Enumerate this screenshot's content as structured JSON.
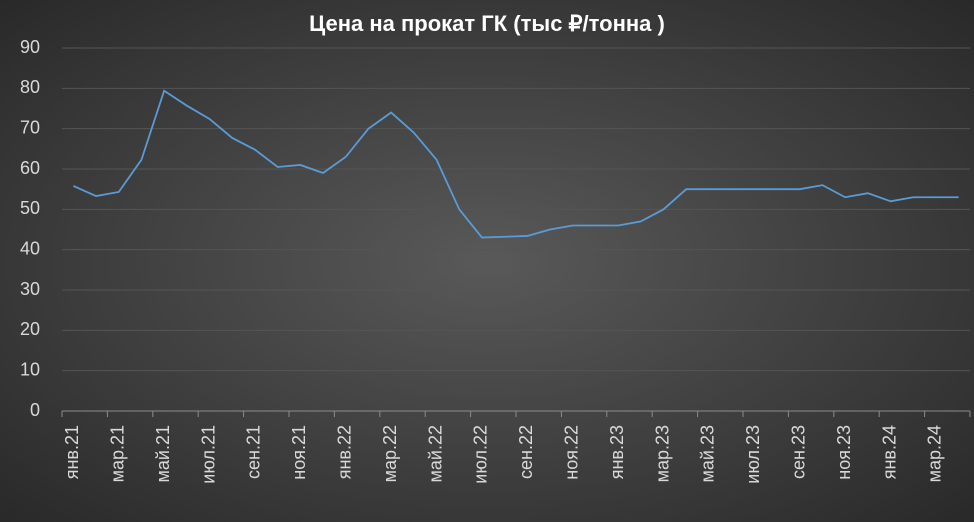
{
  "chart_data": {
    "type": "line",
    "title": "Цена на прокат ГК (тыс ₽/тонна )",
    "categories": [
      "янв.21",
      null,
      "мар.21",
      null,
      "май.21",
      null,
      "июл.21",
      null,
      "сен.21",
      null,
      "ноя.21",
      null,
      "янв.22",
      null,
      "мар.22",
      null,
      "май.22",
      null,
      "июл.22",
      null,
      "сен.22",
      null,
      "ноя.22",
      null,
      "янв.23",
      null,
      "мар.23",
      null,
      "май.23",
      null,
      "июл.23",
      null,
      "сен.23",
      null,
      "ноя.23",
      null,
      "янв.24",
      null,
      "мар.24",
      null
    ],
    "series": [
      {
        "color": "#5b9bd5",
        "values": [
          55.8,
          53.3,
          54.3,
          62.3,
          79.4,
          75.7,
          72.4,
          67.7,
          64.8,
          60.5,
          61,
          59,
          63,
          70,
          74,
          69,
          62.3,
          50,
          43,
          43.2,
          43.4,
          45,
          46,
          46,
          46,
          47,
          50,
          55,
          55,
          55,
          55,
          55,
          55,
          56,
          53,
          54,
          52,
          53,
          53,
          53
        ]
      }
    ],
    "ylim": [
      0,
      90
    ],
    "yticks": [
      0,
      10,
      20,
      30,
      40,
      50,
      60,
      70,
      80,
      90
    ],
    "grid": true
  }
}
